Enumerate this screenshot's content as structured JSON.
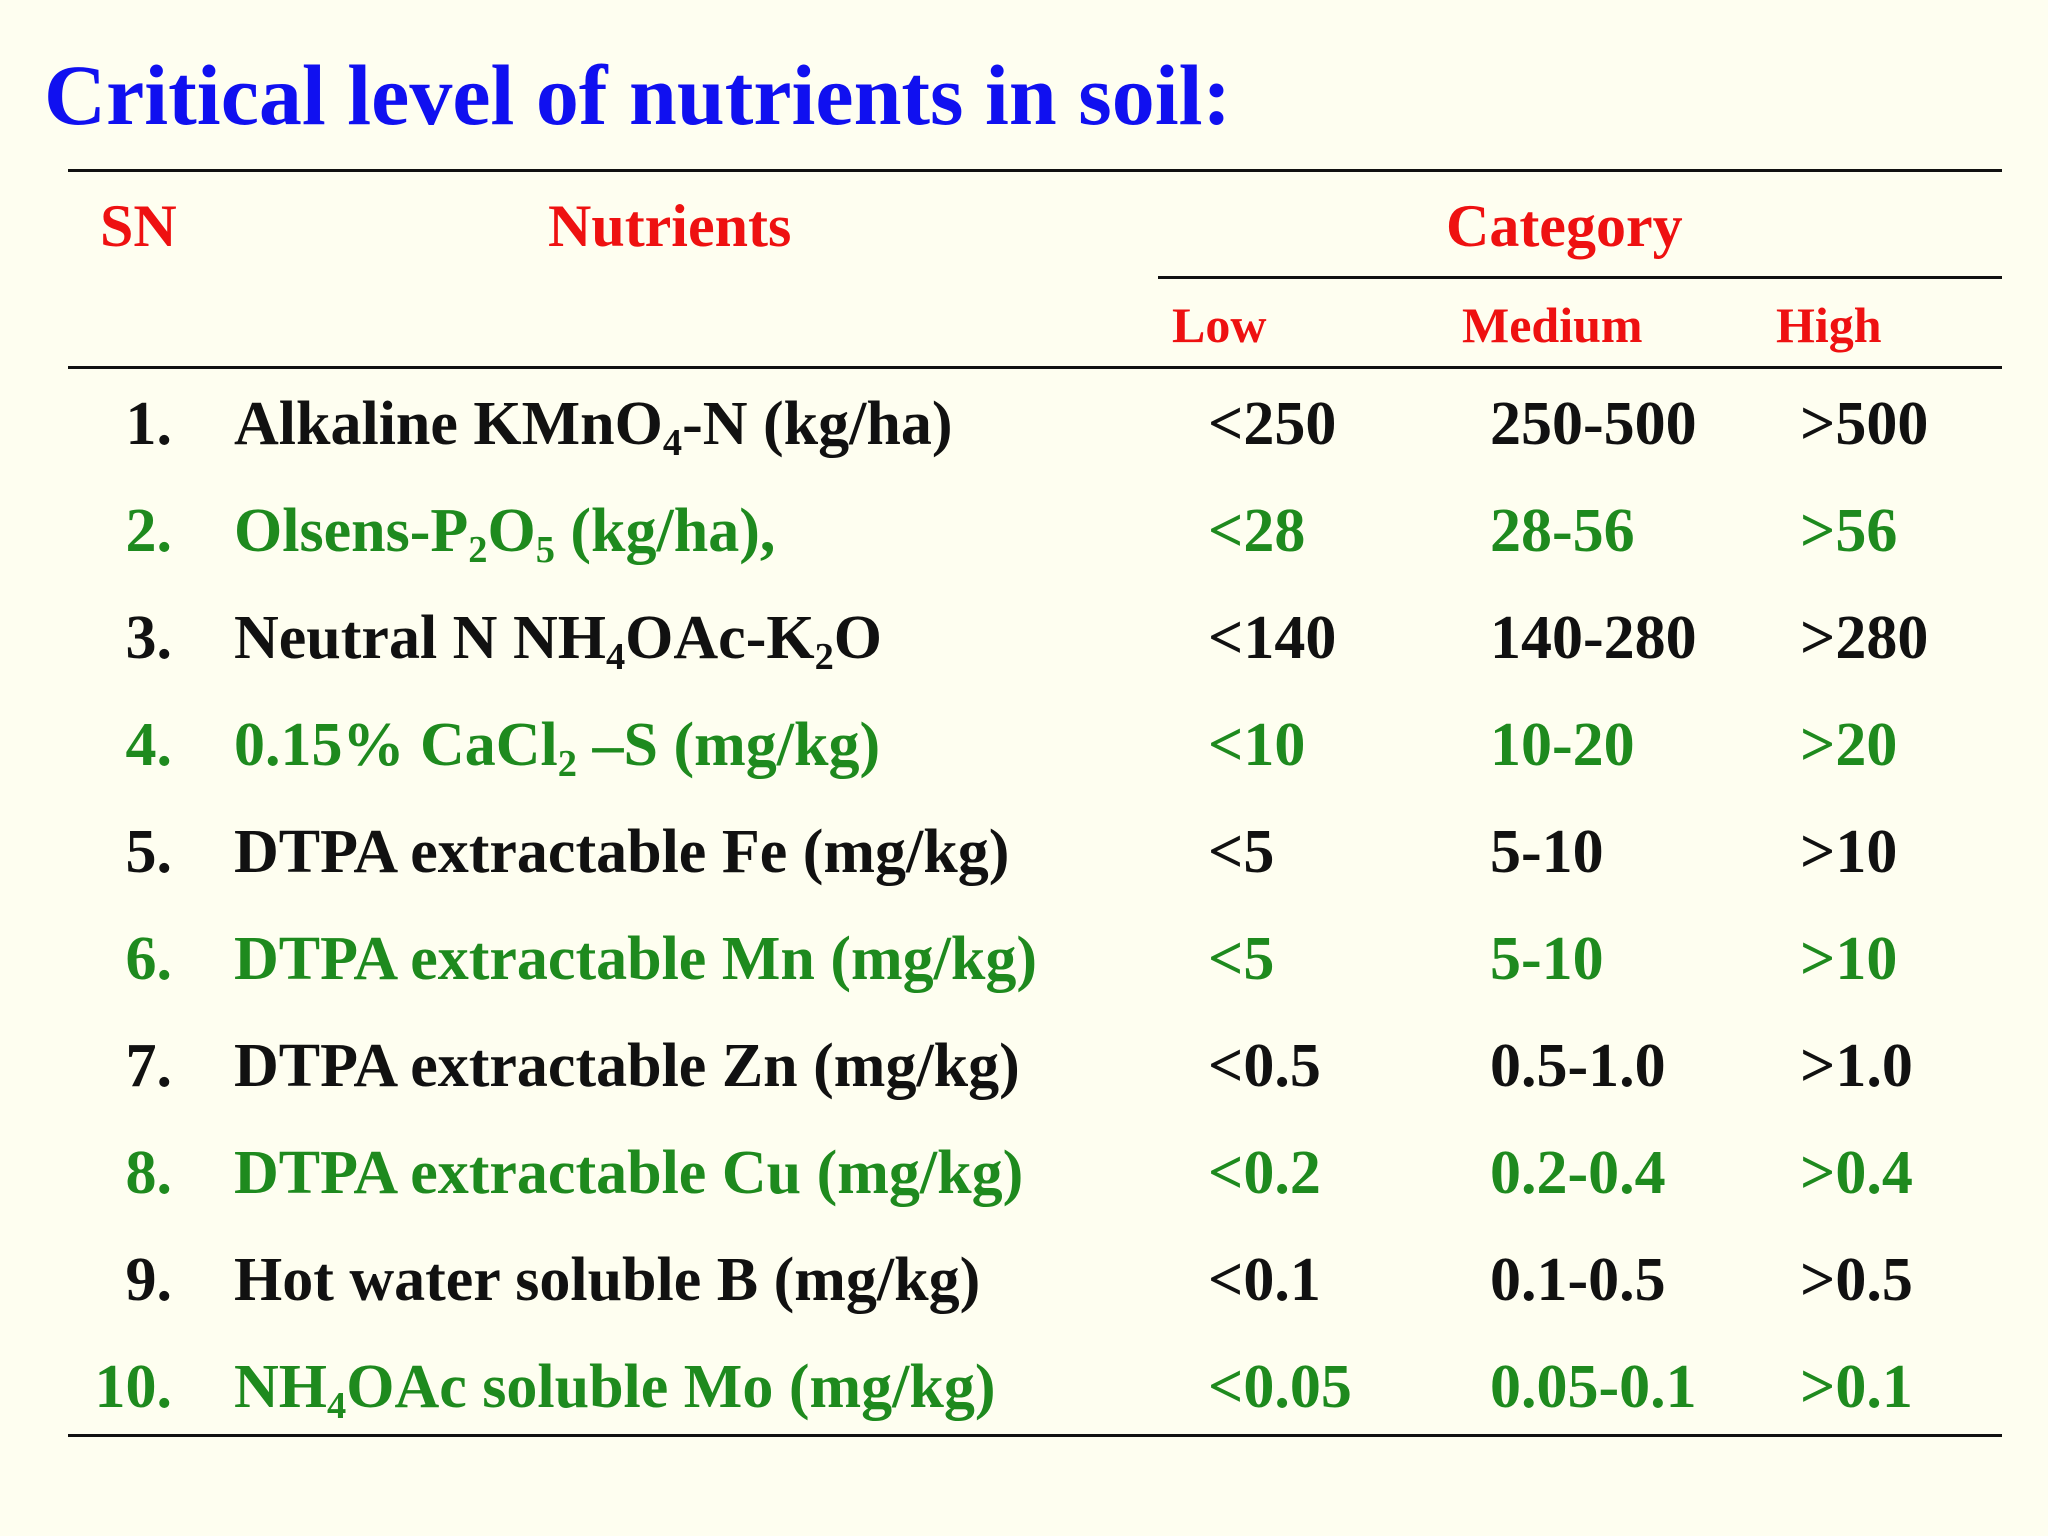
{
  "title": "Critical level of nutrients in soil:",
  "headers": {
    "sn": "SN",
    "nutrients": "Nutrients",
    "category": "Category",
    "low": "Low",
    "medium": "Medium",
    "high": "High"
  },
  "colors": {
    "title": "#1010f0",
    "header": "#ee1111",
    "row_black": "#111111",
    "row_green": "#1e8a1e",
    "background": "#fefef0"
  },
  "rows": [
    {
      "sn": "1.",
      "name_parts": [
        "Alkaline KMnO",
        "4",
        "-N (kg/ha)"
      ],
      "low": "<250",
      "medium": "250-500",
      "high": ">500",
      "color": "black"
    },
    {
      "sn": "2.",
      "name_parts": [
        "Olsens-P",
        "2",
        "O",
        "5",
        " (kg/ha),"
      ],
      "low": "<28",
      "medium": "28-56",
      "high": ">56",
      "color": "green"
    },
    {
      "sn": "3.",
      "name_parts": [
        "Neutral N NH",
        "4",
        "OAc-K",
        "2",
        "O"
      ],
      "low": "<140",
      "medium": "140-280",
      "high": ">280",
      "color": "black"
    },
    {
      "sn": "4.",
      "name_parts": [
        "0.15% CaCl",
        "2",
        " –S (mg/kg)"
      ],
      "low": "<10",
      "medium": "10-20",
      "high": ">20",
      "color": "green"
    },
    {
      "sn": "5.",
      "name_parts": [
        "DTPA extractable Fe (mg/kg)"
      ],
      "low": "<5",
      "medium": "5-10",
      "high": ">10",
      "color": "black"
    },
    {
      "sn": "6.",
      "name_parts": [
        "DTPA extractable Mn (mg/kg)"
      ],
      "low": "<5",
      "medium": "5-10",
      "high": ">10",
      "color": "green"
    },
    {
      "sn": "7.",
      "name_parts": [
        "DTPA extractable Zn (mg/kg)"
      ],
      "low": "<0.5",
      "medium": "0.5-1.0",
      "high": ">1.0",
      "color": "black"
    },
    {
      "sn": "8.",
      "name_parts": [
        "DTPA extractable Cu (mg/kg)"
      ],
      "low": "<0.2",
      "medium": "0.2-0.4",
      "high": ">0.4",
      "color": "green"
    },
    {
      "sn": "9.",
      "name_parts": [
        "Hot water soluble B (mg/kg)"
      ],
      "low": "<0.1",
      "medium": "0.1-0.5",
      "high": ">0.5",
      "color": "black"
    },
    {
      "sn": "10.",
      "name_parts": [
        "NH",
        "4",
        "OAc soluble Mo (mg/kg)"
      ],
      "low": "<0.05",
      "medium": "0.05-0.1",
      "high": ">0.1",
      "color": "green"
    }
  ]
}
